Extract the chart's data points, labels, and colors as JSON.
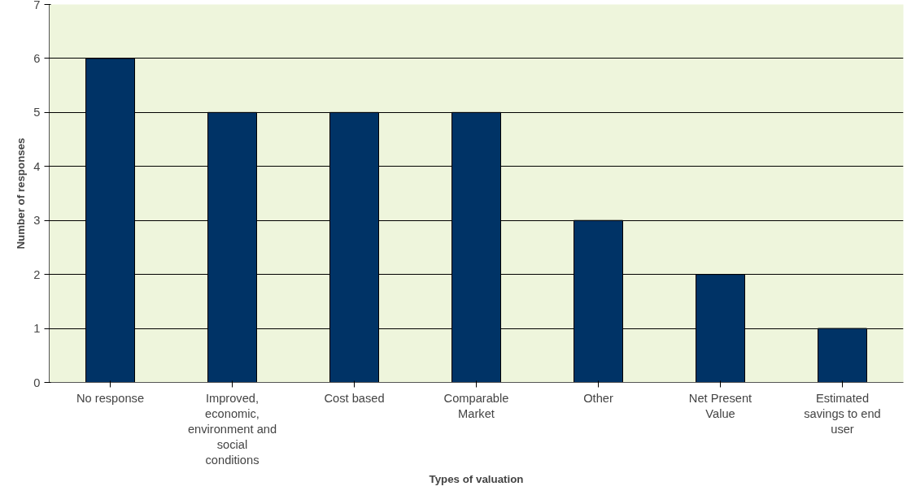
{
  "chart_data": {
    "type": "bar",
    "xlabel": "Types of valuation",
    "ylabel": "Number of responses",
    "categories": [
      "No response",
      "Improved, economic, environment and social conditions",
      "Cost based",
      "Comparable Market",
      "Other",
      "Net Present Value",
      "Estimated savings to end user"
    ],
    "values": [
      6,
      5,
      5,
      5,
      3,
      2,
      1
    ],
    "color": "#003366",
    "ylim": [
      0,
      7
    ],
    "yticks": [
      0,
      1,
      2,
      3,
      4,
      5,
      6,
      7
    ],
    "grid": "y"
  }
}
